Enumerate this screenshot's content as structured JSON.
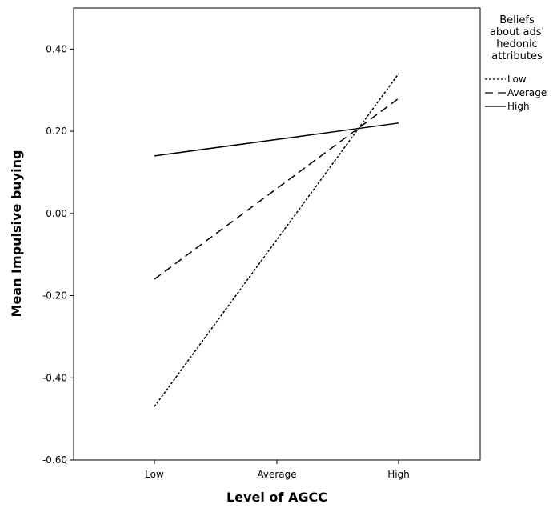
{
  "chart_data": {
    "type": "line",
    "title": "",
    "xlabel": "Level of AGCC",
    "ylabel": "Mean Impulsive buying",
    "categories": [
      "Low",
      "Average",
      "High"
    ],
    "ylim": [
      -0.6,
      0.5
    ],
    "yticks": [
      -0.6,
      -0.4,
      -0.2,
      0.0,
      0.2,
      0.4
    ],
    "ytick_labels": [
      "-0.60",
      "-0.40",
      "-0.20",
      "0.00",
      "0.20",
      "0.40"
    ],
    "grid": false,
    "legend": {
      "title_lines": [
        "Beliefs",
        "about ads'",
        "hedonic",
        "attributes"
      ],
      "placement": "right"
    },
    "series": [
      {
        "name": "Low",
        "style": "dotted",
        "values": [
          -0.47,
          null,
          0.34
        ]
      },
      {
        "name": "Average",
        "style": "dashed",
        "values": [
          -0.16,
          null,
          0.28
        ]
      },
      {
        "name": "High",
        "style": "solid",
        "values": [
          0.14,
          null,
          0.22
        ]
      }
    ]
  }
}
